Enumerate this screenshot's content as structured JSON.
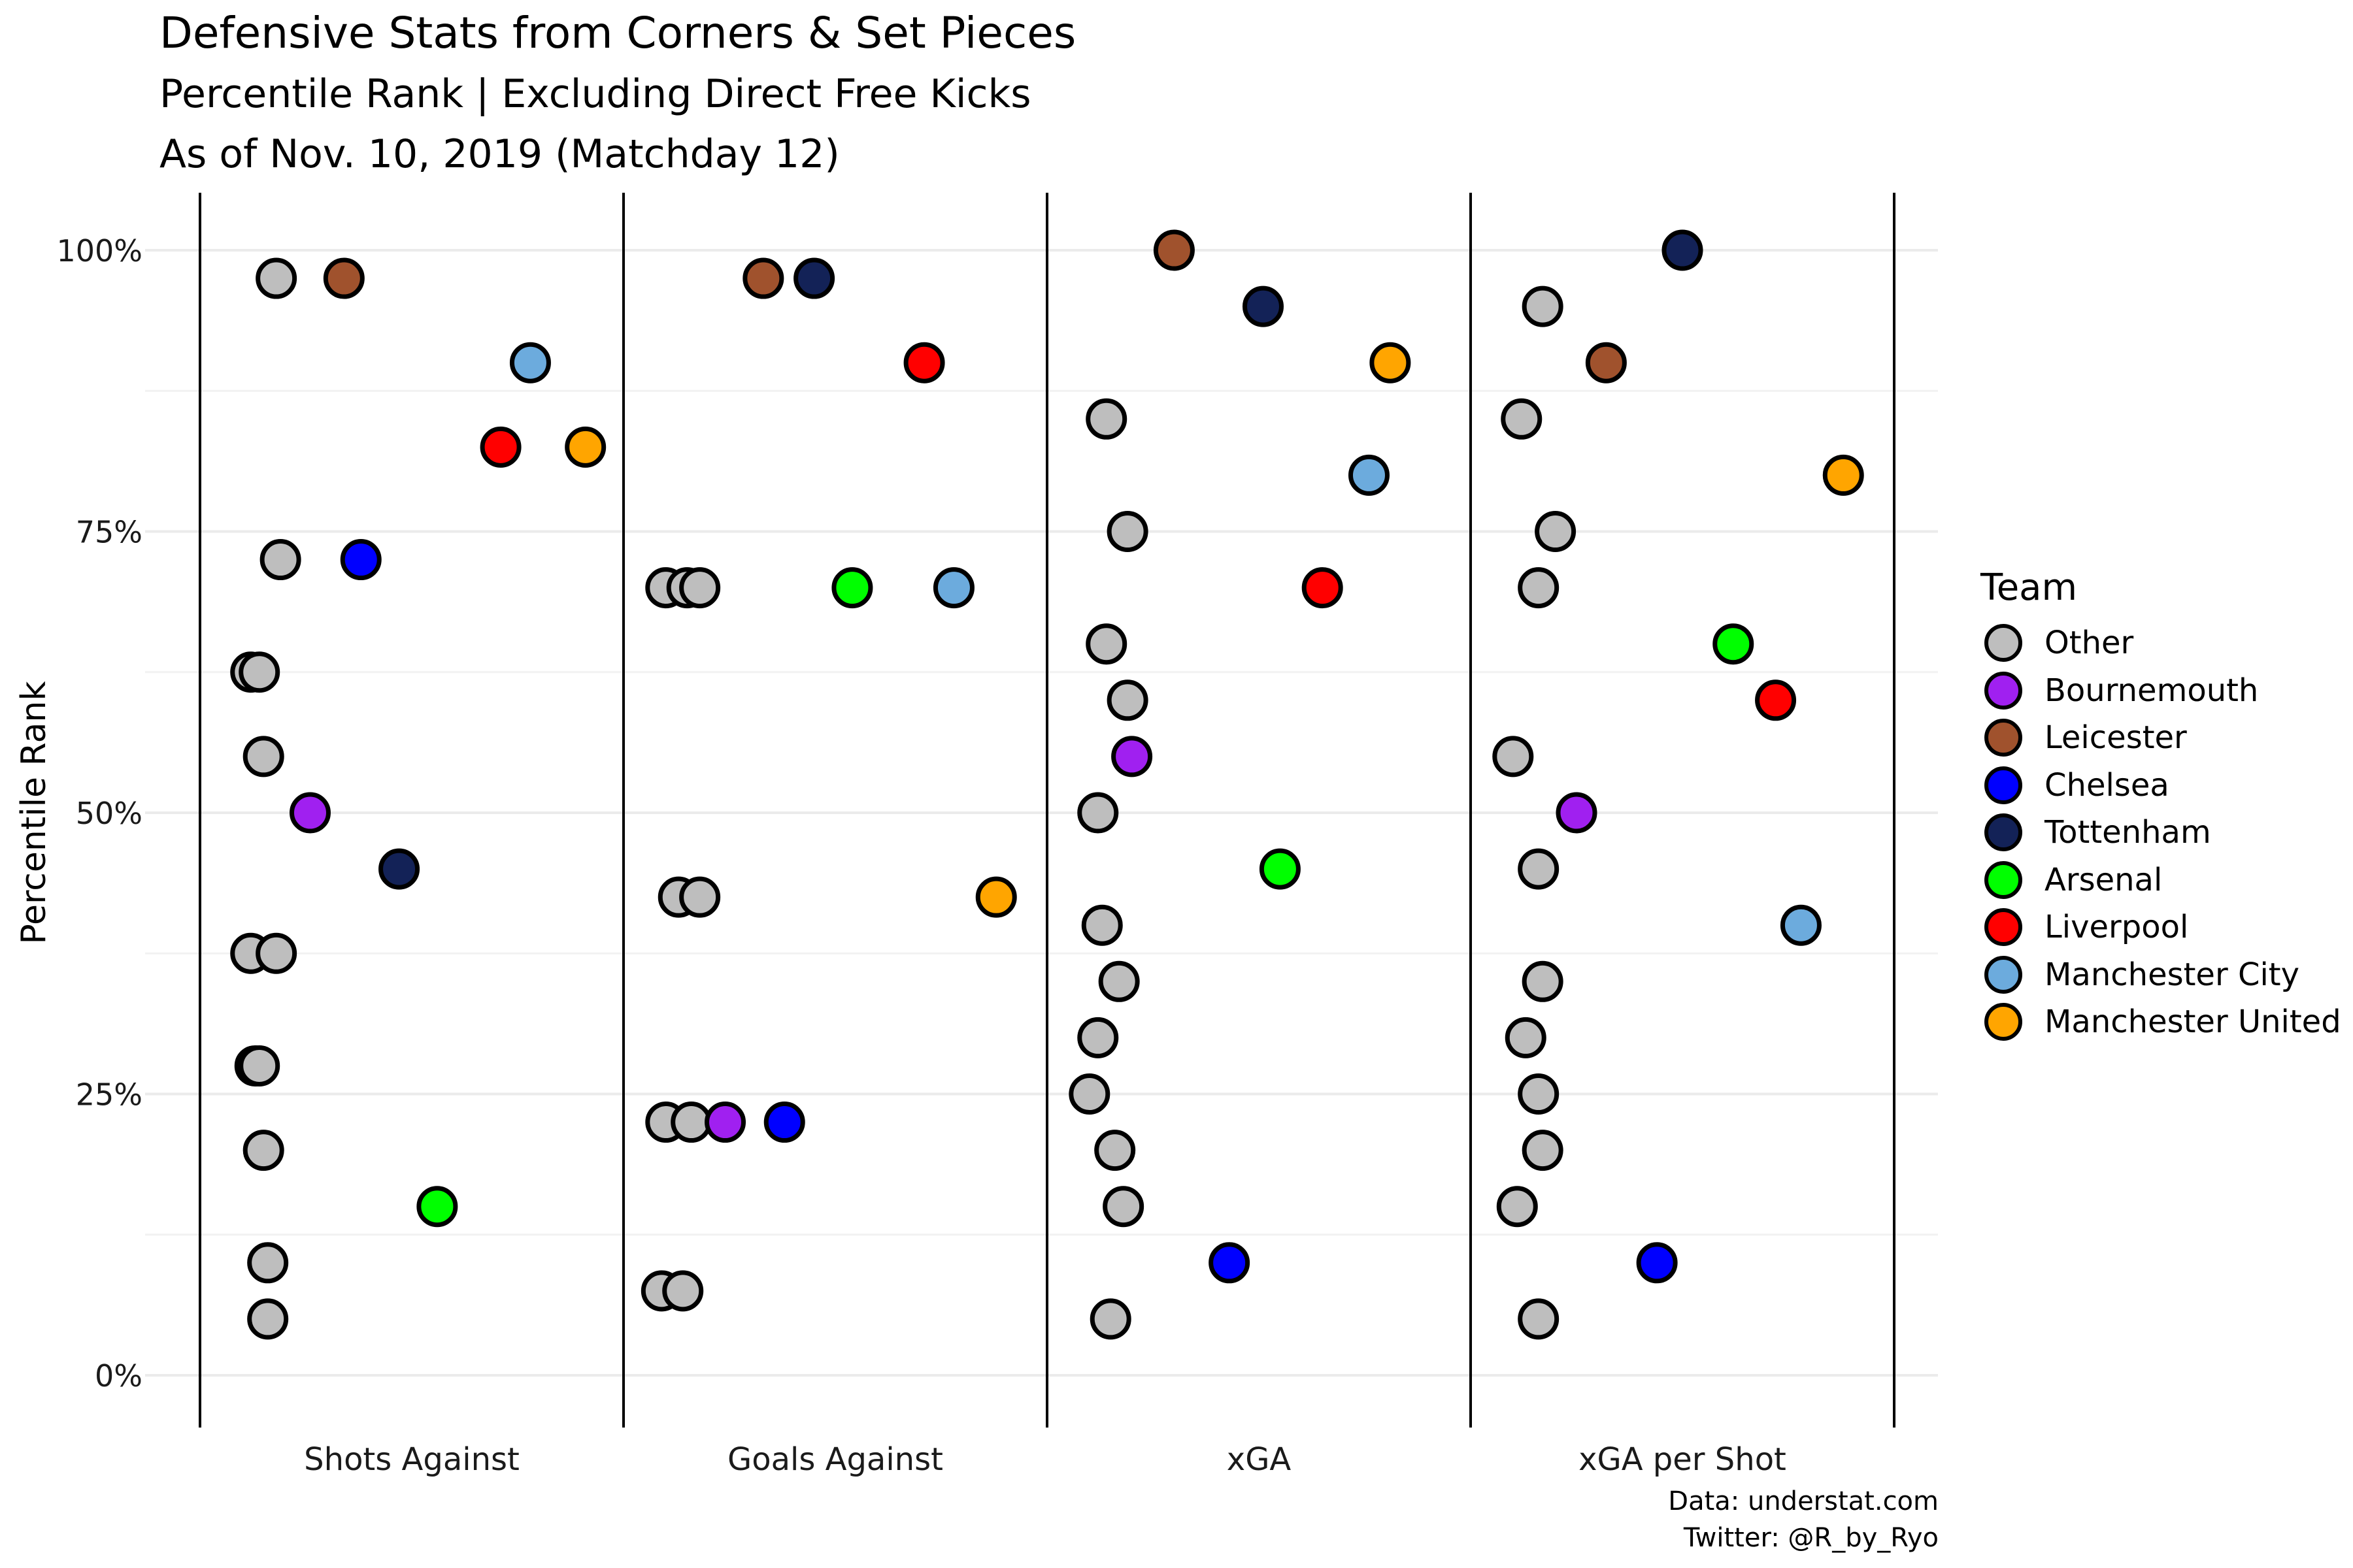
{
  "title": "Defensive Stats from Corners & Set Pieces",
  "subtitle": "Percentile Rank | Excluding Direct Free Kicks",
  "subtitle2": "As of Nov. 10, 2019 (Matchday 12)",
  "caption": {
    "line1": "Data: understat.com",
    "line2": "Twitter: @R_by_Ryo"
  },
  "legend": {
    "title": "Team",
    "items": [
      {
        "label": "Other",
        "color": "#BEBEBE"
      },
      {
        "label": "Bournemouth",
        "color": "#A020F0"
      },
      {
        "label": "Leicester",
        "color": "#A0522D"
      },
      {
        "label": "Chelsea",
        "color": "#0000FF"
      },
      {
        "label": "Tottenham",
        "color": "#132257"
      },
      {
        "label": "Arsenal",
        "color": "#00FF00"
      },
      {
        "label": "Liverpool",
        "color": "#FF0000"
      },
      {
        "label": "Manchester City",
        "color": "#6CABDD"
      },
      {
        "label": "Manchester United",
        "color": "#FFA500"
      }
    ]
  },
  "chart_data": {
    "type": "scatter",
    "xlabel": "",
    "ylabel": "Percentile Rank",
    "categories": [
      "Shots Against",
      "Goals Against",
      "xGA",
      "xGA per Shot"
    ],
    "ylim": [
      0,
      1
    ],
    "yticks": [
      0,
      0.25,
      0.5,
      0.75,
      1.0
    ],
    "ytick_labels": [
      "0%",
      "25%",
      "50%",
      "75%",
      "100%"
    ],
    "grid": true,
    "legend_position": "right",
    "points": [
      {
        "category": "Shots Against",
        "team": "Other",
        "jitter": -0.32,
        "y": 0.975
      },
      {
        "category": "Shots Against",
        "team": "Leicester",
        "jitter": -0.16,
        "y": 0.975
      },
      {
        "category": "Shots Against",
        "team": "Manchester City",
        "jitter": 0.28,
        "y": 0.9
      },
      {
        "category": "Shots Against",
        "team": "Liverpool",
        "jitter": 0.21,
        "y": 0.825
      },
      {
        "category": "Shots Against",
        "team": "Manchester United",
        "jitter": 0.41,
        "y": 0.825
      },
      {
        "category": "Shots Against",
        "team": "Other",
        "jitter": -0.31,
        "y": 0.725
      },
      {
        "category": "Shots Against",
        "team": "Chelsea",
        "jitter": -0.12,
        "y": 0.725
      },
      {
        "category": "Shots Against",
        "team": "Other",
        "jitter": -0.38,
        "y": 0.625
      },
      {
        "category": "Shots Against",
        "team": "Other",
        "jitter": -0.36,
        "y": 0.625
      },
      {
        "category": "Shots Against",
        "team": "Other",
        "jitter": -0.35,
        "y": 0.55
      },
      {
        "category": "Shots Against",
        "team": "Bournemouth",
        "jitter": -0.24,
        "y": 0.5
      },
      {
        "category": "Shots Against",
        "team": "Tottenham",
        "jitter": -0.03,
        "y": 0.45
      },
      {
        "category": "Shots Against",
        "team": "Other",
        "jitter": -0.38,
        "y": 0.375
      },
      {
        "category": "Shots Against",
        "team": "Other",
        "jitter": -0.32,
        "y": 0.375
      },
      {
        "category": "Shots Against",
        "team": "Other",
        "jitter": -0.37,
        "y": 0.275
      },
      {
        "category": "Shots Against",
        "team": "Other",
        "jitter": -0.36,
        "y": 0.275
      },
      {
        "category": "Shots Against",
        "team": "Other",
        "jitter": -0.35,
        "y": 0.2
      },
      {
        "category": "Shots Against",
        "team": "Arsenal",
        "jitter": 0.06,
        "y": 0.15
      },
      {
        "category": "Shots Against",
        "team": "Other",
        "jitter": -0.34,
        "y": 0.1
      },
      {
        "category": "Shots Against",
        "team": "Other",
        "jitter": -0.34,
        "y": 0.05
      },
      {
        "category": "Goals Against",
        "team": "Leicester",
        "jitter": -0.17,
        "y": 0.975
      },
      {
        "category": "Goals Against",
        "team": "Tottenham",
        "jitter": -0.05,
        "y": 0.975
      },
      {
        "category": "Goals Against",
        "team": "Liverpool",
        "jitter": 0.21,
        "y": 0.9
      },
      {
        "category": "Goals Against",
        "team": "Other",
        "jitter": -0.4,
        "y": 0.7
      },
      {
        "category": "Goals Against",
        "team": "Other",
        "jitter": -0.35,
        "y": 0.7
      },
      {
        "category": "Goals Against",
        "team": "Other",
        "jitter": -0.32,
        "y": 0.7
      },
      {
        "category": "Goals Against",
        "team": "Arsenal",
        "jitter": 0.04,
        "y": 0.7
      },
      {
        "category": "Goals Against",
        "team": "Manchester City",
        "jitter": 0.28,
        "y": 0.7
      },
      {
        "category": "Goals Against",
        "team": "Other",
        "jitter": -0.37,
        "y": 0.425
      },
      {
        "category": "Goals Against",
        "team": "Other",
        "jitter": -0.32,
        "y": 0.425
      },
      {
        "category": "Goals Against",
        "team": "Manchester United",
        "jitter": 0.38,
        "y": 0.425
      },
      {
        "category": "Goals Against",
        "team": "Other",
        "jitter": -0.4,
        "y": 0.225
      },
      {
        "category": "Goals Against",
        "team": "Other",
        "jitter": -0.34,
        "y": 0.225
      },
      {
        "category": "Goals Against",
        "team": "Bournemouth",
        "jitter": -0.26,
        "y": 0.225
      },
      {
        "category": "Goals Against",
        "team": "Chelsea",
        "jitter": -0.12,
        "y": 0.225
      },
      {
        "category": "Goals Against",
        "team": "Other",
        "jitter": -0.41,
        "y": 0.075
      },
      {
        "category": "Goals Against",
        "team": "Other",
        "jitter": -0.36,
        "y": 0.075
      },
      {
        "category": "xGA",
        "team": "Leicester",
        "jitter": -0.2,
        "y": 1.0
      },
      {
        "category": "xGA",
        "team": "Tottenham",
        "jitter": 0.01,
        "y": 0.95
      },
      {
        "category": "xGA",
        "team": "Manchester United",
        "jitter": 0.31,
        "y": 0.9
      },
      {
        "category": "xGA",
        "team": "Other",
        "jitter": -0.36,
        "y": 0.85
      },
      {
        "category": "xGA",
        "team": "Manchester City",
        "jitter": 0.26,
        "y": 0.8
      },
      {
        "category": "xGA",
        "team": "Other",
        "jitter": -0.31,
        "y": 0.75
      },
      {
        "category": "xGA",
        "team": "Liverpool",
        "jitter": 0.15,
        "y": 0.7
      },
      {
        "category": "xGA",
        "team": "Other",
        "jitter": -0.36,
        "y": 0.65
      },
      {
        "category": "xGA",
        "team": "Other",
        "jitter": -0.31,
        "y": 0.6
      },
      {
        "category": "xGA",
        "team": "Bournemouth",
        "jitter": -0.3,
        "y": 0.55
      },
      {
        "category": "xGA",
        "team": "Other",
        "jitter": -0.38,
        "y": 0.5
      },
      {
        "category": "xGA",
        "team": "Arsenal",
        "jitter": 0.05,
        "y": 0.45
      },
      {
        "category": "xGA",
        "team": "Other",
        "jitter": -0.37,
        "y": 0.4
      },
      {
        "category": "xGA",
        "team": "Other",
        "jitter": -0.33,
        "y": 0.35
      },
      {
        "category": "xGA",
        "team": "Other",
        "jitter": -0.38,
        "y": 0.3
      },
      {
        "category": "xGA",
        "team": "Other",
        "jitter": -0.4,
        "y": 0.25
      },
      {
        "category": "xGA",
        "team": "Other",
        "jitter": -0.34,
        "y": 0.2
      },
      {
        "category": "xGA",
        "team": "Other",
        "jitter": -0.32,
        "y": 0.15
      },
      {
        "category": "xGA",
        "team": "Chelsea",
        "jitter": -0.07,
        "y": 0.1
      },
      {
        "category": "xGA",
        "team": "Other",
        "jitter": -0.35,
        "y": 0.05
      },
      {
        "category": "xGA per Shot",
        "team": "Tottenham",
        "jitter": 0.0,
        "y": 1.0
      },
      {
        "category": "xGA per Shot",
        "team": "Other",
        "jitter": -0.33,
        "y": 0.95
      },
      {
        "category": "xGA per Shot",
        "team": "Leicester",
        "jitter": -0.18,
        "y": 0.9
      },
      {
        "category": "xGA per Shot",
        "team": "Other",
        "jitter": -0.38,
        "y": 0.85
      },
      {
        "category": "xGA per Shot",
        "team": "Manchester United",
        "jitter": 0.38,
        "y": 0.8
      },
      {
        "category": "xGA per Shot",
        "team": "Other",
        "jitter": -0.3,
        "y": 0.75
      },
      {
        "category": "xGA per Shot",
        "team": "Other",
        "jitter": -0.34,
        "y": 0.7
      },
      {
        "category": "xGA per Shot",
        "team": "Arsenal",
        "jitter": 0.12,
        "y": 0.65
      },
      {
        "category": "xGA per Shot",
        "team": "Liverpool",
        "jitter": 0.22,
        "y": 0.6
      },
      {
        "category": "xGA per Shot",
        "team": "Other",
        "jitter": -0.4,
        "y": 0.55
      },
      {
        "category": "xGA per Shot",
        "team": "Bournemouth",
        "jitter": -0.25,
        "y": 0.5
      },
      {
        "category": "xGA per Shot",
        "team": "Other",
        "jitter": -0.34,
        "y": 0.45
      },
      {
        "category": "xGA per Shot",
        "team": "Manchester City",
        "jitter": 0.28,
        "y": 0.4
      },
      {
        "category": "xGA per Shot",
        "team": "Other",
        "jitter": -0.33,
        "y": 0.35
      },
      {
        "category": "xGA per Shot",
        "team": "Other",
        "jitter": -0.37,
        "y": 0.3
      },
      {
        "category": "xGA per Shot",
        "team": "Other",
        "jitter": -0.34,
        "y": 0.25
      },
      {
        "category": "xGA per Shot",
        "team": "Other",
        "jitter": -0.33,
        "y": 0.2
      },
      {
        "category": "xGA per Shot",
        "team": "Other",
        "jitter": -0.39,
        "y": 0.15
      },
      {
        "category": "xGA per Shot",
        "team": "Chelsea",
        "jitter": -0.06,
        "y": 0.1
      },
      {
        "category": "xGA per Shot",
        "team": "Other",
        "jitter": -0.34,
        "y": 0.05
      }
    ]
  }
}
